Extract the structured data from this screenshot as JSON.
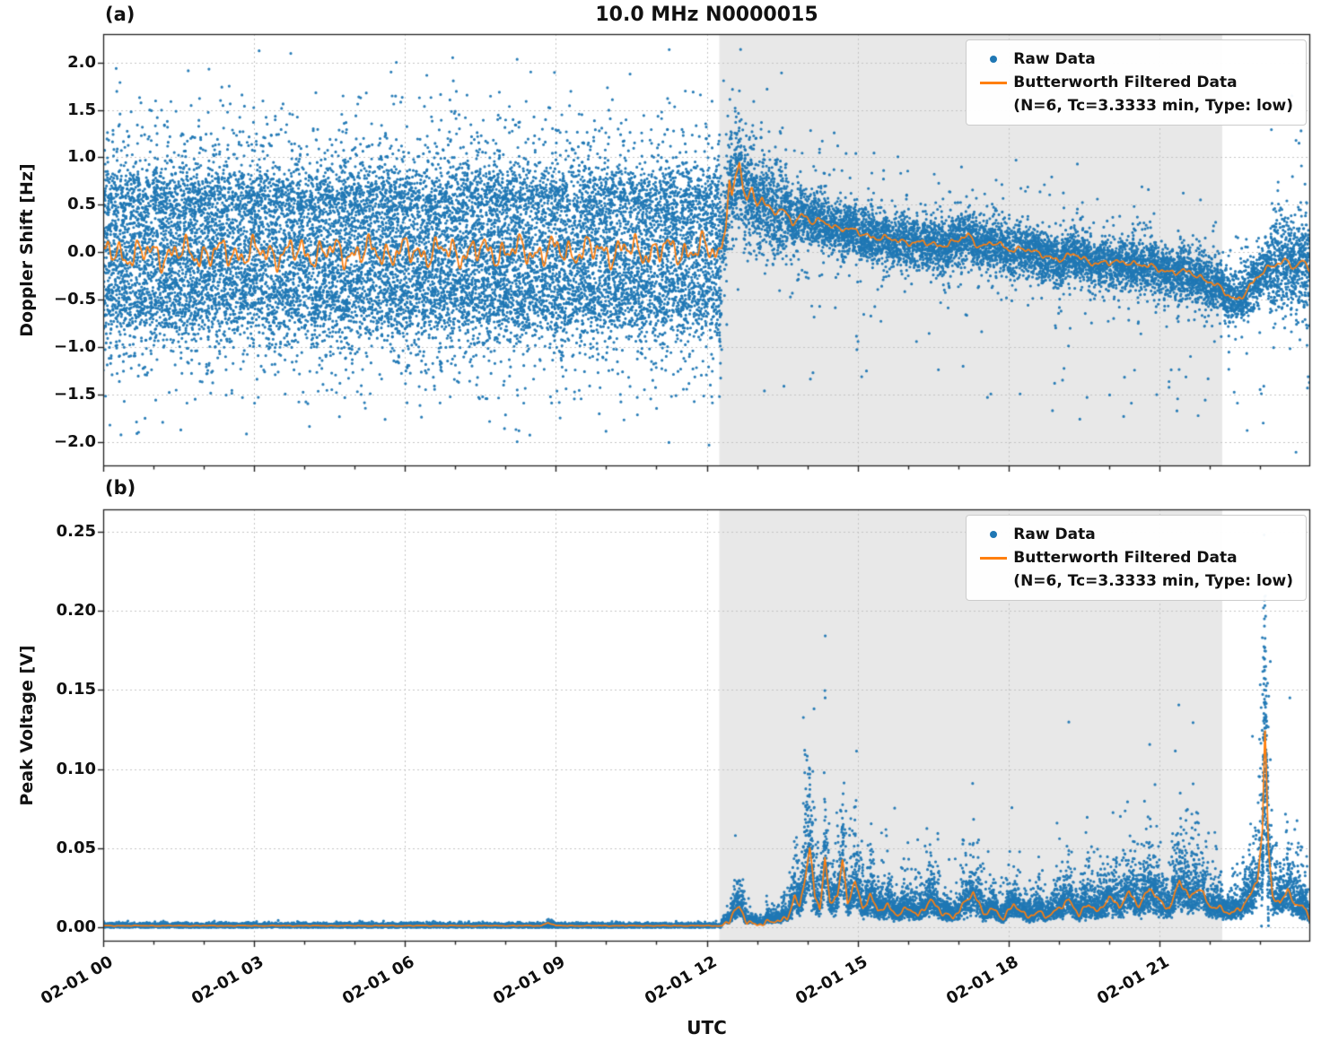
{
  "figure": {
    "title": "10.0 MHz N0000015",
    "panel_labels": {
      "a": "(a)",
      "b": "(b)"
    },
    "xlabel": "UTC",
    "legend": {
      "raw_label": "Raw Data",
      "filtered_label": "Butterworth Filtered Data",
      "filtered_sublabel": "(N=6, Tc=3.3333 min, Type: low)"
    },
    "colors": {
      "raw": "#1f77b4",
      "filtered": "#ff7f0e",
      "shade": "#e8e8e8",
      "grid": "#c4c4c4",
      "spine": "#222222",
      "text": "#111111"
    }
  },
  "chart_data": [
    {
      "type": "scatter",
      "panel": "a",
      "title": "10.0 MHz N0000015",
      "xlabel": "UTC",
      "ylabel": "Doppler Shift [Hz]",
      "x_unit": "hours since 02-01 00:00 UTC",
      "xlim_hours": [
        0,
        24
      ],
      "ylim": [
        -2.26,
        2.3
      ],
      "grid": true,
      "legend_position": "upper right",
      "show_xtick_labels": false,
      "shaded_region_hours": [
        12.25,
        22.25
      ],
      "xticks": [
        {
          "hour": 0,
          "label": "02-01 00"
        },
        {
          "hour": 3,
          "label": "02-01 03"
        },
        {
          "hour": 6,
          "label": "02-01 06"
        },
        {
          "hour": 9,
          "label": "02-01 09"
        },
        {
          "hour": 12,
          "label": "02-01 12"
        },
        {
          "hour": 15,
          "label": "02-01 15"
        },
        {
          "hour": 18,
          "label": "02-01 18"
        },
        {
          "hour": 21,
          "label": "02-01 21"
        }
      ],
      "yticks": [
        {
          "v": 2.0,
          "label": "2.0"
        },
        {
          "v": 1.5,
          "label": "1.5"
        },
        {
          "v": 1.0,
          "label": "1.0"
        },
        {
          "v": 0.5,
          "label": "0.5"
        },
        {
          "v": 0.0,
          "label": "0.0"
        },
        {
          "v": -0.5,
          "label": "−0.5"
        },
        {
          "v": -1.0,
          "label": "−1.0"
        },
        {
          "v": -1.5,
          "label": "−1.5"
        },
        {
          "v": -2.0,
          "label": "−2.0"
        }
      ],
      "series": [
        {
          "name": "Raw Data",
          "render": "scatter",
          "color_key": "raw",
          "seed": 42,
          "segments": [
            {
              "t0": 0,
              "t1": 12.3,
              "n": 14000,
              "mode": "absolute",
              "mix": [
                {
                  "w": 0.5,
                  "dist": "n",
                  "p": [
                    0,
                    0.42
                  ]
                },
                {
                  "w": 0.17,
                  "dist": "n",
                  "p": [
                    0.6,
                    0.16
                  ]
                },
                {
                  "w": 0.17,
                  "dist": "n",
                  "p": [
                    -0.55,
                    0.18
                  ]
                },
                {
                  "w": 0.09,
                  "dist": "u",
                  "p": [
                    -1.3,
                    1.3
                  ]
                },
                {
                  "w": 0.055,
                  "dist": "u",
                  "p": [
                    -1.6,
                    1.7
                  ]
                },
                {
                  "w": 0.015,
                  "dist": "u",
                  "p": [
                    -2.05,
                    2.15
                  ]
                }
              ]
            },
            {
              "t0": 12.3,
              "t1": 24,
              "n": 9000,
              "mode": "offset",
              "mix": [
                {
                  "w": 0.88,
                  "dist": "n",
                  "p": [
                    0,
                    0.13
                  ]
                },
                {
                  "w": 0.1,
                  "dist": "n",
                  "p": [
                    0,
                    0.3
                  ]
                },
                {
                  "w": 0.02,
                  "dist": "u",
                  "p": [
                    -1.7,
                    1.0
                  ]
                }
              ],
              "boost": [
                {
                  "t0": 12.3,
                  "t1": 13.6,
                  "f": 1.9
                },
                {
                  "t0": 23.2,
                  "t1": 24,
                  "f": 1.9
                }
              ]
            }
          ]
        },
        {
          "name": "Butterworth Filtered Data",
          "detail": "(N=6, Tc=3.3333 min, Type: low)",
          "render": "line",
          "color_key": "filtered",
          "keypoints": [
            [
              0,
              -0.02
            ],
            [
              12.3,
              0.02
            ],
            [
              12.38,
              0.35
            ],
            [
              12.45,
              0.78
            ],
            [
              12.5,
              0.58
            ],
            [
              12.58,
              0.8
            ],
            [
              12.65,
              0.92
            ],
            [
              12.72,
              0.68
            ],
            [
              12.8,
              0.56
            ],
            [
              12.9,
              0.66
            ],
            [
              13.0,
              0.5
            ],
            [
              13.1,
              0.6
            ],
            [
              13.2,
              0.48
            ],
            [
              13.35,
              0.4
            ],
            [
              13.5,
              0.45
            ],
            [
              13.7,
              0.32
            ],
            [
              13.9,
              0.4
            ],
            [
              14.1,
              0.3
            ],
            [
              14.3,
              0.33
            ],
            [
              14.6,
              0.26
            ],
            [
              15.0,
              0.21
            ],
            [
              15.4,
              0.15
            ],
            [
              15.8,
              0.12
            ],
            [
              16.2,
              0.1
            ],
            [
              16.6,
              0.07
            ],
            [
              17.0,
              0.12
            ],
            [
              17.2,
              0.17
            ],
            [
              17.4,
              0.07
            ],
            [
              17.7,
              0.1
            ],
            [
              18.0,
              0.02
            ],
            [
              18.3,
              0.05
            ],
            [
              18.6,
              -0.03
            ],
            [
              19.0,
              -0.07
            ],
            [
              19.3,
              -0.03
            ],
            [
              19.6,
              -0.1
            ],
            [
              20.0,
              -0.12
            ],
            [
              20.4,
              -0.1
            ],
            [
              20.8,
              -0.16
            ],
            [
              21.2,
              -0.2
            ],
            [
              21.6,
              -0.22
            ],
            [
              22.0,
              -0.3
            ],
            [
              22.2,
              -0.38
            ],
            [
              22.4,
              -0.48
            ],
            [
              22.55,
              -0.5
            ],
            [
              22.7,
              -0.42
            ],
            [
              22.9,
              -0.3
            ],
            [
              23.1,
              -0.2
            ],
            [
              23.3,
              -0.12
            ],
            [
              23.5,
              -0.08
            ],
            [
              23.7,
              -0.18
            ],
            [
              23.85,
              -0.1
            ],
            [
              24,
              -0.18
            ]
          ],
          "noise": {
            "t_split": 12.35,
            "amp_pre": 0.22,
            "amp_post": 0.05,
            "freqs": [
              19,
              33,
              57,
              8.5
            ],
            "weights": [
              0.45,
              0.3,
              0.15,
              0.35
            ],
            "phases": [
              1.3,
              4.1,
              2.2,
              0.7
            ]
          }
        }
      ]
    },
    {
      "type": "scatter",
      "panel": "b",
      "xlabel": "UTC",
      "ylabel": "Peak Voltage [V]",
      "x_unit": "hours since 02-01 00:00 UTC",
      "xlim_hours": [
        0,
        24
      ],
      "ylim": [
        -0.009,
        0.264
      ],
      "grid": true,
      "legend_position": "upper right",
      "show_xtick_labels": true,
      "shaded_region_hours": [
        12.25,
        22.25
      ],
      "xticks": [
        {
          "hour": 0,
          "label": "02-01 00"
        },
        {
          "hour": 3,
          "label": "02-01 03"
        },
        {
          "hour": 6,
          "label": "02-01 06"
        },
        {
          "hour": 9,
          "label": "02-01 09"
        },
        {
          "hour": 12,
          "label": "02-01 12"
        },
        {
          "hour": 15,
          "label": "02-01 15"
        },
        {
          "hour": 18,
          "label": "02-01 18"
        },
        {
          "hour": 21,
          "label": "02-01 21"
        }
      ],
      "yticks": [
        {
          "v": 0.25,
          "label": "0.25"
        },
        {
          "v": 0.2,
          "label": "0.20"
        },
        {
          "v": 0.15,
          "label": "0.15"
        },
        {
          "v": 0.1,
          "label": "0.10"
        },
        {
          "v": 0.05,
          "label": "0.05"
        },
        {
          "v": 0.0,
          "label": "0.00"
        }
      ],
      "series": [
        {
          "name": "Raw Data",
          "render": "scatter",
          "color_key": "raw",
          "seed": 7,
          "segments": [
            {
              "t0": 0,
              "t1": 12.3,
              "n": 6000,
              "mode": "absolute",
              "clip_min": 0,
              "mix": [
                {
                  "w": 1,
                  "dist": "n",
                  "p": [
                    0.0012,
                    0.0008
                  ]
                }
              ]
            },
            {
              "t0": 8.8,
              "t1": 8.95,
              "n": 40,
              "mode": "absolute",
              "clip_min": 0,
              "mix": [
                {
                  "w": 1,
                  "dist": "n",
                  "p": [
                    0.003,
                    0.0012
                  ]
                }
              ]
            },
            {
              "t0": 12.3,
              "t1": 24,
              "n": 9000,
              "mode": "scale",
              "add": 0.0015,
              "clip_min": 0,
              "mix": [
                {
                  "w": 0.72,
                  "dist": "ln",
                  "p": [
                    -0.1,
                    0.4
                  ]
                },
                {
                  "w": 0.28,
                  "dist": "ln",
                  "p": [
                    0.35,
                    0.5
                  ]
                }
              ]
            },
            {
              "t0": 23.03,
              "t1": 23.17,
              "n": 150,
              "mode": "spike",
              "center": 23.1,
              "halfwidth": 0.07,
              "peak": 0.25,
              "floor": 0.3
            }
          ]
        },
        {
          "name": "Butterworth Filtered Data",
          "detail": "(N=6, Tc=3.3333 min, Type: low)",
          "render": "line",
          "color_key": "filtered",
          "clip_min": 0.0005,
          "keypoints": [
            [
              0,
              0.001
            ],
            [
              8.7,
              0.001
            ],
            [
              8.85,
              0.003
            ],
            [
              9.0,
              0.001
            ],
            [
              12.3,
              0.001
            ],
            [
              12.45,
              0.004
            ],
            [
              12.55,
              0.01
            ],
            [
              12.65,
              0.012
            ],
            [
              12.8,
              0.004
            ],
            [
              13.0,
              0.002
            ],
            [
              13.3,
              0.003
            ],
            [
              13.6,
              0.006
            ],
            [
              13.75,
              0.02
            ],
            [
              13.85,
              0.012
            ],
            [
              13.95,
              0.03
            ],
            [
              14.05,
              0.05
            ],
            [
              14.15,
              0.02
            ],
            [
              14.25,
              0.012
            ],
            [
              14.35,
              0.045
            ],
            [
              14.45,
              0.015
            ],
            [
              14.6,
              0.02
            ],
            [
              14.7,
              0.042
            ],
            [
              14.8,
              0.015
            ],
            [
              14.95,
              0.03
            ],
            [
              15.1,
              0.012
            ],
            [
              15.25,
              0.02
            ],
            [
              15.4,
              0.01
            ],
            [
              15.6,
              0.014
            ],
            [
              15.8,
              0.008
            ],
            [
              16.0,
              0.012
            ],
            [
              16.2,
              0.007
            ],
            [
              16.45,
              0.018
            ],
            [
              16.7,
              0.008
            ],
            [
              16.9,
              0.006
            ],
            [
              17.1,
              0.015
            ],
            [
              17.3,
              0.022
            ],
            [
              17.5,
              0.008
            ],
            [
              17.7,
              0.012
            ],
            [
              17.9,
              0.006
            ],
            [
              18.1,
              0.014
            ],
            [
              18.35,
              0.007
            ],
            [
              18.6,
              0.01
            ],
            [
              18.8,
              0.006
            ],
            [
              19.0,
              0.012
            ],
            [
              19.2,
              0.018
            ],
            [
              19.4,
              0.008
            ],
            [
              19.6,
              0.014
            ],
            [
              19.8,
              0.01
            ],
            [
              20.0,
              0.02
            ],
            [
              20.2,
              0.012
            ],
            [
              20.4,
              0.022
            ],
            [
              20.6,
              0.014
            ],
            [
              20.8,
              0.025
            ],
            [
              21.0,
              0.016
            ],
            [
              21.2,
              0.012
            ],
            [
              21.4,
              0.03
            ],
            [
              21.6,
              0.018
            ],
            [
              21.8,
              0.025
            ],
            [
              22.0,
              0.014
            ],
            [
              22.2,
              0.012
            ],
            [
              22.4,
              0.008
            ],
            [
              22.6,
              0.012
            ],
            [
              22.8,
              0.02
            ],
            [
              22.95,
              0.03
            ],
            [
              23.05,
              0.06
            ],
            [
              23.1,
              0.127
            ],
            [
              23.17,
              0.05
            ],
            [
              23.25,
              0.02
            ],
            [
              23.4,
              0.015
            ],
            [
              23.55,
              0.025
            ],
            [
              23.7,
              0.012
            ],
            [
              23.85,
              0.015
            ],
            [
              24,
              0.004
            ]
          ],
          "noise": {
            "t_split": 12.35,
            "amp_pre": 0.0003,
            "amp_post": 0.0025,
            "freqs": [
              21,
              37,
              55,
              9
            ],
            "weights": [
              0.4,
              0.3,
              0.2,
              0.3
            ],
            "phases": [
              0.4,
              2.9,
              5.1,
              1.6
            ]
          }
        }
      ]
    }
  ]
}
